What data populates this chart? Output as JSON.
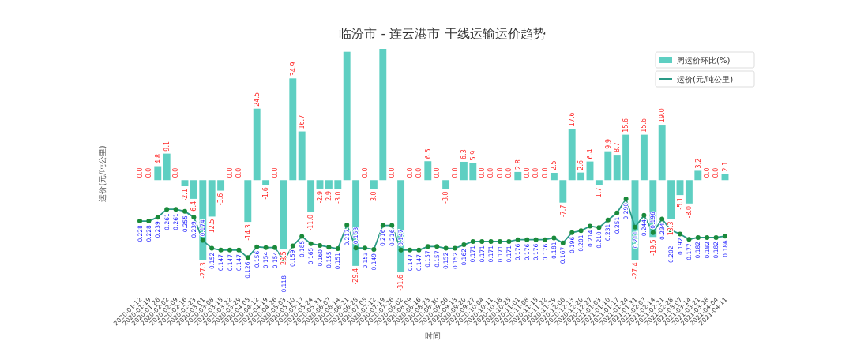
{
  "chart_data": {
    "type": "bar",
    "title": "临汾市 - 连云港市 干线运输运价趋势",
    "xlabel": "时间",
    "ylabel": "运价(元/吨公里)",
    "legend": "top right",
    "marker": "circle",
    "categories": [
      "2020-01-12",
      "2020-01-19",
      "2020-01-26",
      "2020-02-02",
      "2020-02-09",
      "2020-02-16",
      "2020-02-23",
      "2020-03-01",
      "2020-03-08",
      "2020-03-15",
      "2020-03-22",
      "2020-03-29",
      "2020-04-05",
      "2020-04-12",
      "2020-04-19",
      "2020-04-26",
      "2020-05-03",
      "2020-05-10",
      "2020-05-17",
      "2020-05-24",
      "2020-05-31",
      "2020-06-07",
      "2020-06-14",
      "2020-06-21",
      "2020-06-28",
      "2020-07-05",
      "2020-07-12",
      "2020-07-19",
      "2020-07-26",
      "2020-08-02",
      "2020-08-09",
      "2020-08-16",
      "2020-08-23",
      "2020-08-30",
      "2020-09-06",
      "2020-09-13",
      "2020-09-20",
      "2020-09-27",
      "2020-10-04",
      "2020-10-11",
      "2020-10-18",
      "2020-10-25",
      "2020-11-01",
      "2020-11-08",
      "2020-11-15",
      "2020-11-22",
      "2020-11-29",
      "2020-12-06",
      "2020-12-13",
      "2020-12-20",
      "2020-12-27",
      "2021-01-03",
      "2021-01-10",
      "2021-01-17",
      "2021-01-24",
      "2021-01-31",
      "2021-02-07",
      "2021-02-14",
      "2021-02-21",
      "2021-02-28",
      "2021-03-07",
      "2021-03-14",
      "2021-03-21",
      "2021-03-28",
      "2021-04-04",
      "2021-04-11"
    ],
    "series": [
      {
        "name": "周运价环比(%)",
        "type": "bar",
        "color": "#5ecfc2",
        "values": [
          0.0,
          0.0,
          4.8,
          9.1,
          0.0,
          -2.1,
          -6.4,
          -27.3,
          -12.5,
          -3.6,
          0.0,
          0.0,
          -14.3,
          24.5,
          -1.6,
          0.0,
          -23.5,
          34.9,
          16.7,
          -11.0,
          -2.9,
          -2.9,
          -3.0,
          44.0,
          -29.4,
          0.0,
          -3.0,
          45.0,
          0.0,
          -31.6,
          0.0,
          0.0,
          6.5,
          0.0,
          -3.0,
          0.0,
          6.3,
          5.9,
          0.0,
          0.0,
          0.0,
          0.0,
          2.8,
          0.0,
          0.0,
          0.0,
          2.5,
          -7.7,
          17.6,
          2.6,
          6.4,
          -1.7,
          9.9,
          8.7,
          15.6,
          -27.4,
          15.6,
          -19.5,
          19.0,
          -13.3,
          -5.1,
          -8.0,
          3.2,
          0.0,
          0.0,
          2.1
        ],
        "value_labels": [
          "0.0",
          "0.0",
          "4.8",
          "9.1",
          "0.0",
          "-2.1",
          "-6.4",
          "-27.3",
          "-12.5",
          "-3.6",
          "0.0",
          "0.0",
          "-14.3",
          "24.5",
          "-1.6",
          "0.0",
          "-23.5",
          "34.9",
          "16.7",
          "-11.0",
          "-2.9",
          "-2.9",
          "-3.0",
          null,
          "-29.4",
          "0.0",
          "-3.0",
          null,
          "0.0",
          "-31.6",
          "0.0",
          "0.0",
          "6.5",
          "0.0",
          "-3.0",
          "0.0",
          "6.3",
          "5.9",
          "0.0",
          "0.0",
          "0.0",
          "0.0",
          "2.8",
          "0.0",
          "0.0",
          "0.0",
          "2.5",
          "-7.7",
          "17.6",
          "2.6",
          "6.4",
          "-1.7",
          "9.9",
          "8.7",
          "15.6",
          "-27.4",
          "15.6",
          "-19.5",
          "19.0",
          "-13.3",
          "-5.1",
          "-8.0",
          "3.2",
          "0.0",
          "0.0",
          "2.1"
        ]
      },
      {
        "name": "运价(元/吨公里)",
        "type": "line",
        "axis": "y2",
        "color": "#2a9a86",
        "values": [
          0.228,
          0.228,
          0.239,
          0.261,
          0.261,
          0.255,
          0.239,
          0.174,
          0.152,
          0.147,
          0.147,
          0.147,
          0.126,
          0.156,
          0.154,
          0.154,
          0.118,
          0.159,
          0.185,
          0.165,
          0.16,
          0.155,
          0.151,
          0.217,
          0.153,
          0.153,
          0.149,
          0.216,
          0.216,
          0.147,
          0.147,
          0.147,
          0.157,
          0.157,
          0.152,
          0.152,
          0.162,
          0.171,
          0.171,
          0.171,
          0.171,
          0.171,
          0.176,
          0.176,
          0.176,
          0.176,
          0.181,
          0.167,
          0.196,
          0.201,
          0.214,
          0.21,
          0.231,
          0.251,
          0.29,
          0.211,
          0.244,
          0.196,
          0.234,
          0.202,
          0.192,
          0.177,
          0.182,
          0.182,
          0.182,
          0.186
        ],
        "value_labels": [
          "0.228",
          "0.228",
          "0.239",
          "0.261",
          "0.261",
          "0.255",
          "0.239",
          "0.174",
          "0.152",
          "0.147",
          "0.147",
          "0.147",
          "0.126",
          "0.156",
          "0.154",
          "0.154",
          "0.118",
          "0.159",
          "0.185",
          "0.165",
          "0.160",
          "0.155",
          "0.151",
          "0.217",
          "0.153",
          "0.153",
          "0.149",
          "0.216",
          "0.216",
          "0.147",
          "0.147",
          "0.147",
          "0.157",
          "0.157",
          "0.152",
          "0.152",
          "0.162",
          "0.171",
          "0.171",
          "0.171",
          "0.171",
          "0.171",
          "0.176",
          "0.176",
          "0.176",
          "0.176",
          "0.181",
          "0.167",
          "0.196",
          "0.201",
          "0.214",
          "0.210",
          "0.231",
          "0.251",
          "0.290",
          "0.211",
          "0.244",
          "0.196",
          "0.234",
          "0.202",
          "0.192",
          "0.177",
          "0.182",
          "0.182",
          "0.182",
          "0.186"
        ]
      }
    ]
  }
}
